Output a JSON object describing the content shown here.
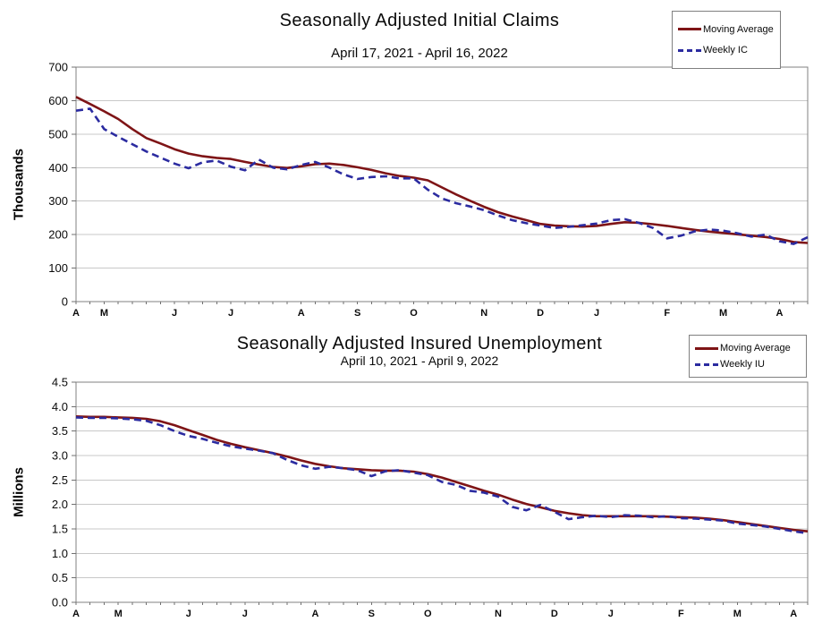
{
  "chart_data": [
    {
      "type": "line",
      "title": "Seasonally Adjusted Initial Claims",
      "subtitle": "April 17, 2021 - April 16, 2022",
      "ylabel": "Thousands",
      "xlabel": "",
      "ylim": [
        0,
        700
      ],
      "y_tick_labels": [
        "0",
        "100",
        "200",
        "300",
        "400",
        "500",
        "600",
        "700"
      ],
      "x_unit": "weeks",
      "n_points": 53,
      "x_start": "April 17, 2021",
      "x_end": "April 16, 2022",
      "grid": "horizontal",
      "legend_position": "top-right",
      "month_tick_labels": [
        {
          "label": "A",
          "week": 0
        },
        {
          "label": "M",
          "week": 2
        },
        {
          "label": "J",
          "week": 7
        },
        {
          "label": "J",
          "week": 11
        },
        {
          "label": "A",
          "week": 16
        },
        {
          "label": "S",
          "week": 20
        },
        {
          "label": "O",
          "week": 24
        },
        {
          "label": "N",
          "week": 29
        },
        {
          "label": "D",
          "week": 33
        },
        {
          "label": "J",
          "week": 37
        },
        {
          "label": "F",
          "week": 42
        },
        {
          "label": "M",
          "week": 46
        },
        {
          "label": "A",
          "week": 50
        }
      ],
      "series": [
        {
          "name": "Moving Average",
          "color": "#7E1416",
          "dash": false,
          "values": [
            611,
            590,
            568,
            545,
            515,
            488,
            472,
            455,
            442,
            434,
            429,
            426,
            417,
            409,
            402,
            399,
            404,
            410,
            412,
            408,
            401,
            393,
            383,
            375,
            370,
            362,
            341,
            320,
            301,
            283,
            267,
            254,
            243,
            232,
            227,
            225,
            224,
            226,
            232,
            237,
            235,
            231,
            226,
            220,
            214,
            209,
            205,
            201,
            197,
            193,
            187,
            178,
            175
          ]
        },
        {
          "name": "Weekly IC",
          "color": "#2B2BA0",
          "dash": true,
          "values": [
            570,
            576,
            515,
            492,
            470,
            448,
            430,
            412,
            398,
            416,
            421,
            403,
            392,
            424,
            400,
            395,
            408,
            417,
            400,
            380,
            366,
            372,
            374,
            368,
            368,
            334,
            308,
            294,
            284,
            273,
            257,
            243,
            234,
            227,
            220,
            223,
            228,
            233,
            243,
            246,
            235,
            220,
            189,
            197,
            210,
            215,
            212,
            204,
            194,
            200,
            180,
            172,
            192
          ]
        }
      ]
    },
    {
      "type": "line",
      "title": "Seasonally Adjusted Insured Unemployment",
      "subtitle": "April 10, 2021 - April 9, 2022",
      "ylabel": "Millions",
      "xlabel": "",
      "ylim": [
        0,
        4.5
      ],
      "y_tick_labels": [
        "0.0",
        "0.5",
        "1.0",
        "1.5",
        "2.0",
        "2.5",
        "3.0",
        "3.5",
        "4.0",
        "4.5"
      ],
      "x_unit": "weeks",
      "n_points": 53,
      "x_start": "April 10, 2021",
      "x_end": "April 9, 2022",
      "grid": "horizontal",
      "legend_position": "top-right",
      "month_tick_labels": [
        {
          "label": "A",
          "week": 0
        },
        {
          "label": "M",
          "week": 3
        },
        {
          "label": "J",
          "week": 8
        },
        {
          "label": "J",
          "week": 12
        },
        {
          "label": "A",
          "week": 17
        },
        {
          "label": "S",
          "week": 21
        },
        {
          "label": "O",
          "week": 25
        },
        {
          "label": "N",
          "week": 30
        },
        {
          "label": "D",
          "week": 34
        },
        {
          "label": "J",
          "week": 38
        },
        {
          "label": "F",
          "week": 43
        },
        {
          "label": "M",
          "week": 47
        },
        {
          "label": "A",
          "week": 51
        }
      ],
      "series": [
        {
          "name": "Moving Average",
          "color": "#7E1416",
          "dash": false,
          "values": [
            3.8,
            3.79,
            3.79,
            3.78,
            3.77,
            3.75,
            3.7,
            3.62,
            3.52,
            3.42,
            3.32,
            3.24,
            3.17,
            3.11,
            3.05,
            2.98,
            2.9,
            2.83,
            2.78,
            2.74,
            2.72,
            2.7,
            2.69,
            2.69,
            2.67,
            2.62,
            2.55,
            2.46,
            2.37,
            2.28,
            2.2,
            2.1,
            2.01,
            1.94,
            1.87,
            1.82,
            1.78,
            1.76,
            1.76,
            1.76,
            1.76,
            1.76,
            1.75,
            1.74,
            1.73,
            1.71,
            1.68,
            1.64,
            1.6,
            1.56,
            1.52,
            1.48,
            1.45
          ]
        },
        {
          "name": "Weekly IU",
          "color": "#2B2BA0",
          "dash": true,
          "values": [
            3.78,
            3.77,
            3.77,
            3.76,
            3.74,
            3.71,
            3.62,
            3.5,
            3.4,
            3.34,
            3.26,
            3.19,
            3.14,
            3.1,
            3.05,
            2.91,
            2.8,
            2.73,
            2.77,
            2.74,
            2.7,
            2.58,
            2.68,
            2.7,
            2.65,
            2.6,
            2.46,
            2.4,
            2.28,
            2.24,
            2.16,
            1.95,
            1.88,
            1.99,
            1.85,
            1.7,
            1.74,
            1.77,
            1.74,
            1.78,
            1.77,
            1.74,
            1.76,
            1.72,
            1.71,
            1.69,
            1.67,
            1.61,
            1.58,
            1.55,
            1.5,
            1.45,
            1.41
          ]
        }
      ]
    }
  ],
  "style": {
    "grid_color": "#C8C8C8",
    "frame_color": "#808080",
    "tick_color": "#707070",
    "text_color": "#0a0a0a"
  }
}
